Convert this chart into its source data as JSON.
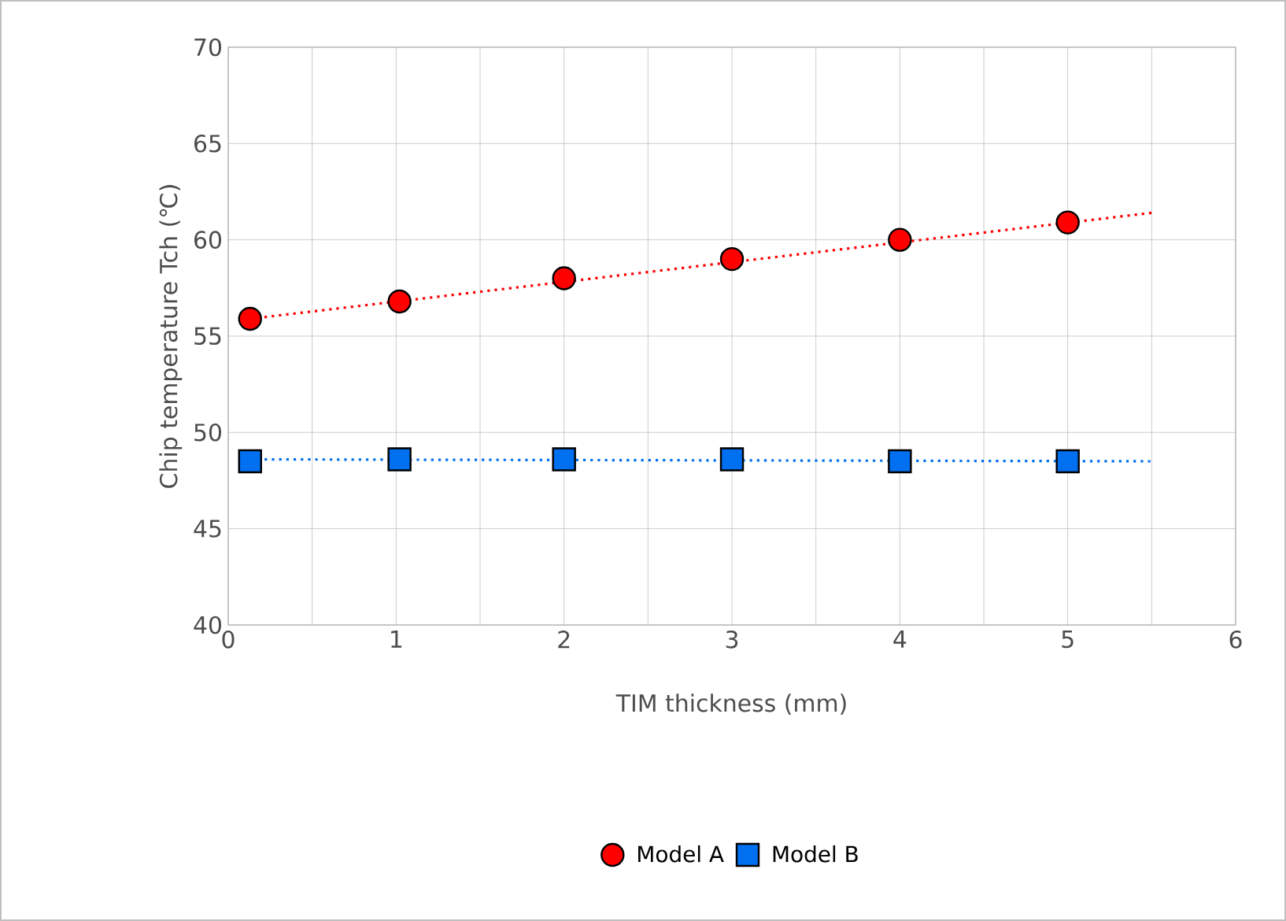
{
  "chart_data": {
    "type": "scatter",
    "xlabel": "TIM thickness (mm)",
    "ylabel": "Chip temperature  Tch (℃)",
    "xlim": [
      0,
      6
    ],
    "ylim": [
      40,
      70
    ],
    "xticks": [
      0,
      1,
      2,
      3,
      4,
      5,
      6
    ],
    "yticks": [
      40,
      45,
      50,
      55,
      60,
      65,
      70
    ],
    "grid": true,
    "legend": "bottom",
    "series": [
      {
        "name": "Model A",
        "color": "#ff0000",
        "marker": "circle",
        "x": [
          0.13,
          1.02,
          2,
          3,
          4,
          5
        ],
        "values": [
          55.9,
          56.8,
          58.0,
          59.0,
          60.0,
          60.9
        ]
      },
      {
        "name": "Model B",
        "color": "#0070f0",
        "marker": "square",
        "x": [
          0.13,
          1.02,
          2,
          3,
          4,
          5
        ],
        "values": [
          48.5,
          48.6,
          48.6,
          48.6,
          48.5,
          48.5
        ]
      },
      {
        "type": "line",
        "color": "#ff0000",
        "line_style": "dotted",
        "marker": "none",
        "x": [
          0.13,
          5.5
        ],
        "values": [
          55.9,
          61.4
        ]
      },
      {
        "type": "line",
        "color": "#0070f0",
        "line_style": "dotted",
        "marker": "none",
        "x": [
          0.13,
          5.5
        ],
        "values": [
          48.6,
          48.5
        ]
      }
    ]
  }
}
